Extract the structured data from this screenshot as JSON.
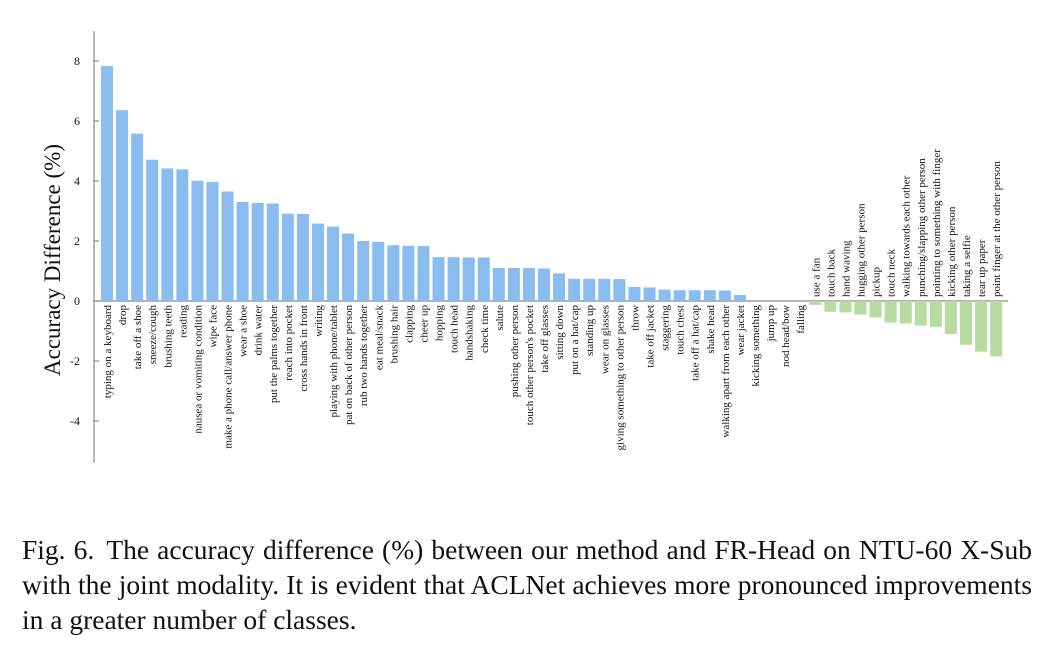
{
  "chart_data": {
    "type": "bar",
    "title": "",
    "xlabel": "",
    "ylabel": "Accuracy Difference (%)",
    "ylim": [
      -5.4,
      9
    ],
    "yticks": [
      -4,
      -2,
      0,
      2,
      4,
      6,
      8
    ],
    "grid": false,
    "colors": {
      "positive": "#8bbcef",
      "negative": "#b7dba0",
      "axis": "#888888"
    },
    "categories": [
      "typing on a keyboard",
      "drop",
      "take off a shoe",
      "sneeze/cough",
      "brushing teeth",
      "reading",
      "nausea or vomiting condition",
      "wipe face",
      "make a phone call/answer phone",
      "wear a shoe",
      "drink water",
      "put the palms together",
      "reach into pocket",
      "cross hands in front",
      "writing",
      "playing with phone/tablet",
      "pat on back of other person",
      "rub two hands together",
      "eat meal/snack",
      "brushing hair",
      "clapping",
      "cheer up",
      "hopping",
      "touch head",
      "handshaking",
      "check time",
      "salute",
      "pushing other person",
      "touch other person's pocket",
      "take off glasses",
      "sitting down",
      "put on a hat/cap",
      "standing up",
      "wear on glasses",
      "giving something to other person",
      "throw",
      "take off jacket",
      "staggering",
      "touch chest",
      "take off a hat/cap",
      "shake head",
      "walking apart from each other",
      "wear jacket",
      "kicking something",
      "jump up",
      "nod head/bow",
      "falling",
      "use a fan",
      "touch back",
      "hand waving",
      "hugging other person",
      "pickup",
      "touch neck",
      "walking towards each other",
      "punching/slapping other person",
      "pointing to something with finger",
      "kicking other person",
      "taking a selfie",
      "tear up paper",
      "point finger at the other person"
    ],
    "values": [
      7.83,
      6.36,
      5.58,
      4.71,
      4.42,
      4.39,
      4.01,
      3.97,
      3.65,
      3.3,
      3.27,
      3.25,
      2.91,
      2.9,
      2.58,
      2.48,
      2.25,
      2.0,
      1.97,
      1.86,
      1.84,
      1.83,
      1.46,
      1.46,
      1.45,
      1.45,
      1.1,
      1.1,
      1.1,
      1.08,
      0.92,
      0.74,
      0.74,
      0.74,
      0.73,
      0.47,
      0.45,
      0.38,
      0.36,
      0.36,
      0.36,
      0.35,
      0.2,
      0.0,
      0.0,
      0.0,
      0.0,
      -0.13,
      -0.36,
      -0.38,
      -0.45,
      -0.55,
      -0.72,
      -0.75,
      -0.82,
      -0.86,
      -1.1,
      -1.46,
      -1.69,
      -1.85
    ]
  },
  "caption": {
    "label": "Fig. 6.",
    "text": "The accuracy difference (%) between our method and FR-Head on NTU-60 X-Sub with the joint modality. It is evident that ACLNet achieves more pronounced improvements in a greater number of classes."
  }
}
